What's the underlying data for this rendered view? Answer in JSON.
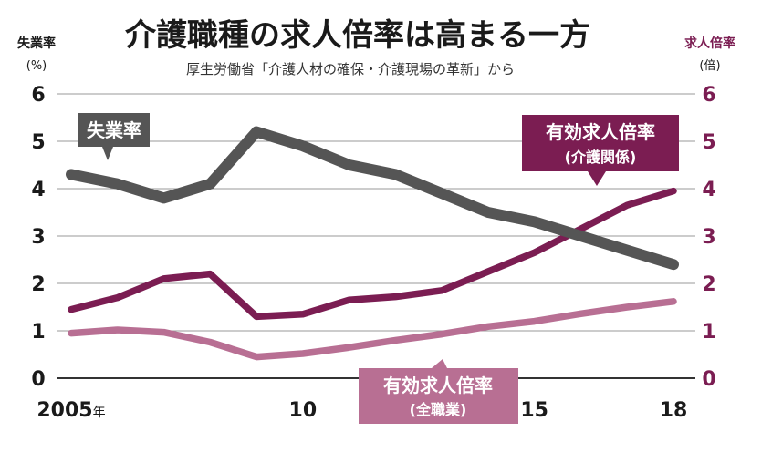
{
  "chart_data": {
    "type": "line",
    "title": "介護職種の求人倍率は高まる一方",
    "subtitle": "厚生労働省「介護人材の確保・介護現場の革新」から",
    "x": [
      2005,
      2006,
      2007,
      2008,
      2009,
      2010,
      2011,
      2012,
      2013,
      2014,
      2015,
      2016,
      2017,
      2018
    ],
    "x_tick_labels": [
      {
        "x": 2005,
        "label": "2005",
        "suffix": "年"
      },
      {
        "x": 2010,
        "label": "10",
        "suffix": ""
      },
      {
        "x": 2015,
        "label": "15",
        "suffix": ""
      },
      {
        "x": 2018,
        "label": "18",
        "suffix": ""
      }
    ],
    "xlim": [
      2005,
      2018
    ],
    "left_axis": {
      "label": "失業率",
      "unit": "(%)",
      "ylim": [
        0,
        6
      ],
      "ticks": [
        "0",
        "1",
        "2",
        "3",
        "4",
        "5",
        "6"
      ]
    },
    "right_axis": {
      "label": "求人倍率",
      "unit": "(倍)",
      "ylim": [
        0,
        6
      ],
      "ticks": [
        "0",
        "1",
        "2",
        "3",
        "4",
        "5",
        "6"
      ]
    },
    "grid": "horizontal",
    "series": [
      {
        "name": "失業率",
        "sub": "",
        "axis": "left",
        "color": "#555555",
        "values": [
          4.3,
          4.1,
          3.8,
          4.1,
          5.2,
          4.9,
          4.5,
          4.3,
          3.9,
          3.5,
          3.3,
          3.0,
          2.7,
          2.4
        ]
      },
      {
        "name": "有効求人倍率",
        "sub": "(介護関係)",
        "axis": "right",
        "color": "#7b1d52",
        "values": [
          1.45,
          1.7,
          2.1,
          2.2,
          1.3,
          1.35,
          1.65,
          1.72,
          1.85,
          2.25,
          2.65,
          3.15,
          3.65,
          3.95
        ]
      },
      {
        "name": "有効求人倍率",
        "sub": "(全職業)",
        "axis": "right",
        "color": "#b86f93",
        "values": [
          0.95,
          1.02,
          0.97,
          0.76,
          0.45,
          0.52,
          0.65,
          0.8,
          0.93,
          1.09,
          1.2,
          1.36,
          1.5,
          1.62
        ]
      }
    ]
  }
}
